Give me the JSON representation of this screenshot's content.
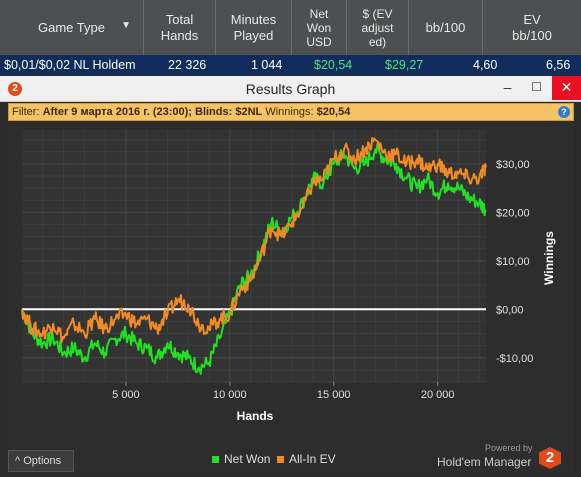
{
  "table": {
    "headers": [
      "Game Type",
      "Total\nHands",
      "Minutes\nPlayed",
      "Net\nWon\nUSD",
      "$ (EV\nadjust\ned)",
      "bb/100",
      "EV\nbb/100"
    ],
    "row": [
      "$0,01/$0,02 NL Holdem",
      "22 326",
      "1 044",
      "$20,54",
      "$29,27",
      "4,60",
      "6,56"
    ]
  },
  "window": {
    "title": "Results Graph",
    "logo": "2",
    "min": "–",
    "max": "☐",
    "close": "✕"
  },
  "filter": {
    "prefix": "Filter:",
    "text": "After 9 марта 2016 г. (23:00); Blinds: $2NL",
    "winnings_label": "Winnings:",
    "winnings_value": "$20,54",
    "help": "?"
  },
  "options_label": "^ Options",
  "legend": {
    "net_won": "Net Won",
    "all_in_ev": "All-In EV"
  },
  "brand": {
    "powered": "Powered by",
    "name": "Hold'em Manager",
    "logo": "2"
  },
  "colors": {
    "net_won": "#22e022",
    "all_in_ev": "#f08a24",
    "zero_line": "#ffffff"
  },
  "chart_data": {
    "type": "line",
    "xlabel": "Hands",
    "ylabel": "Winnings",
    "xlim": [
      0,
      22326
    ],
    "ylim": [
      -15,
      37
    ],
    "x_ticks": [
      5000,
      10000,
      15000,
      20000
    ],
    "x_tick_labels": [
      "5 000",
      "10 000",
      "15 000",
      "20 000"
    ],
    "y_ticks": [
      -10,
      0,
      10,
      20,
      30
    ],
    "y_tick_labels": [
      "-$10,00",
      "$0,00",
      "$10,00",
      "$20,00",
      "$30,00"
    ],
    "grid": true,
    "legend_position": "bottom",
    "series": [
      {
        "name": "Net Won",
        "x": [
          0,
          500,
          1000,
          1500,
          2000,
          2500,
          3000,
          3500,
          4000,
          4500,
          5000,
          5500,
          6000,
          6500,
          7000,
          7500,
          8000,
          8500,
          9000,
          9500,
          10000,
          10500,
          11000,
          11500,
          12000,
          12500,
          13000,
          13500,
          14000,
          14500,
          15000,
          15500,
          16000,
          16500,
          17000,
          17500,
          18000,
          18500,
          19000,
          19500,
          20000,
          20500,
          21000,
          21500,
          22000,
          22326
        ],
        "y": [
          0,
          -5,
          -7,
          -6,
          -9,
          -8,
          -10,
          -7,
          -9,
          -6,
          -5,
          -7,
          -8,
          -10,
          -7,
          -9,
          -10,
          -12,
          -11,
          -6,
          -1,
          5,
          7,
          12,
          18,
          16,
          19,
          22,
          27,
          26,
          30,
          32,
          29,
          30,
          33,
          31,
          30,
          27,
          25,
          27,
          24,
          26,
          25,
          23,
          22,
          20.5
        ]
      },
      {
        "name": "All-In EV",
        "x": [
          0,
          500,
          1000,
          1500,
          2000,
          2500,
          3000,
          3500,
          4000,
          4500,
          5000,
          5500,
          6000,
          6500,
          7000,
          7500,
          8000,
          8500,
          9000,
          9500,
          10000,
          10500,
          11000,
          11500,
          12000,
          12500,
          13000,
          13500,
          14000,
          14500,
          15000,
          15500,
          16000,
          16500,
          17000,
          17500,
          18000,
          18500,
          19000,
          19500,
          20000,
          20500,
          21000,
          21500,
          22000,
          22326
        ],
        "y": [
          0,
          -4,
          -5,
          -3,
          -6,
          -3,
          -5,
          -2,
          -4,
          -2,
          -1,
          -3,
          -2,
          -4,
          -1,
          2,
          1,
          -3,
          -4,
          -2,
          -1,
          4,
          6,
          11,
          17,
          15,
          18,
          21,
          26,
          27,
          31,
          33,
          31,
          33,
          35,
          32,
          32,
          30,
          31,
          29,
          30,
          28,
          28,
          27,
          27,
          29.3
        ]
      }
    ]
  }
}
